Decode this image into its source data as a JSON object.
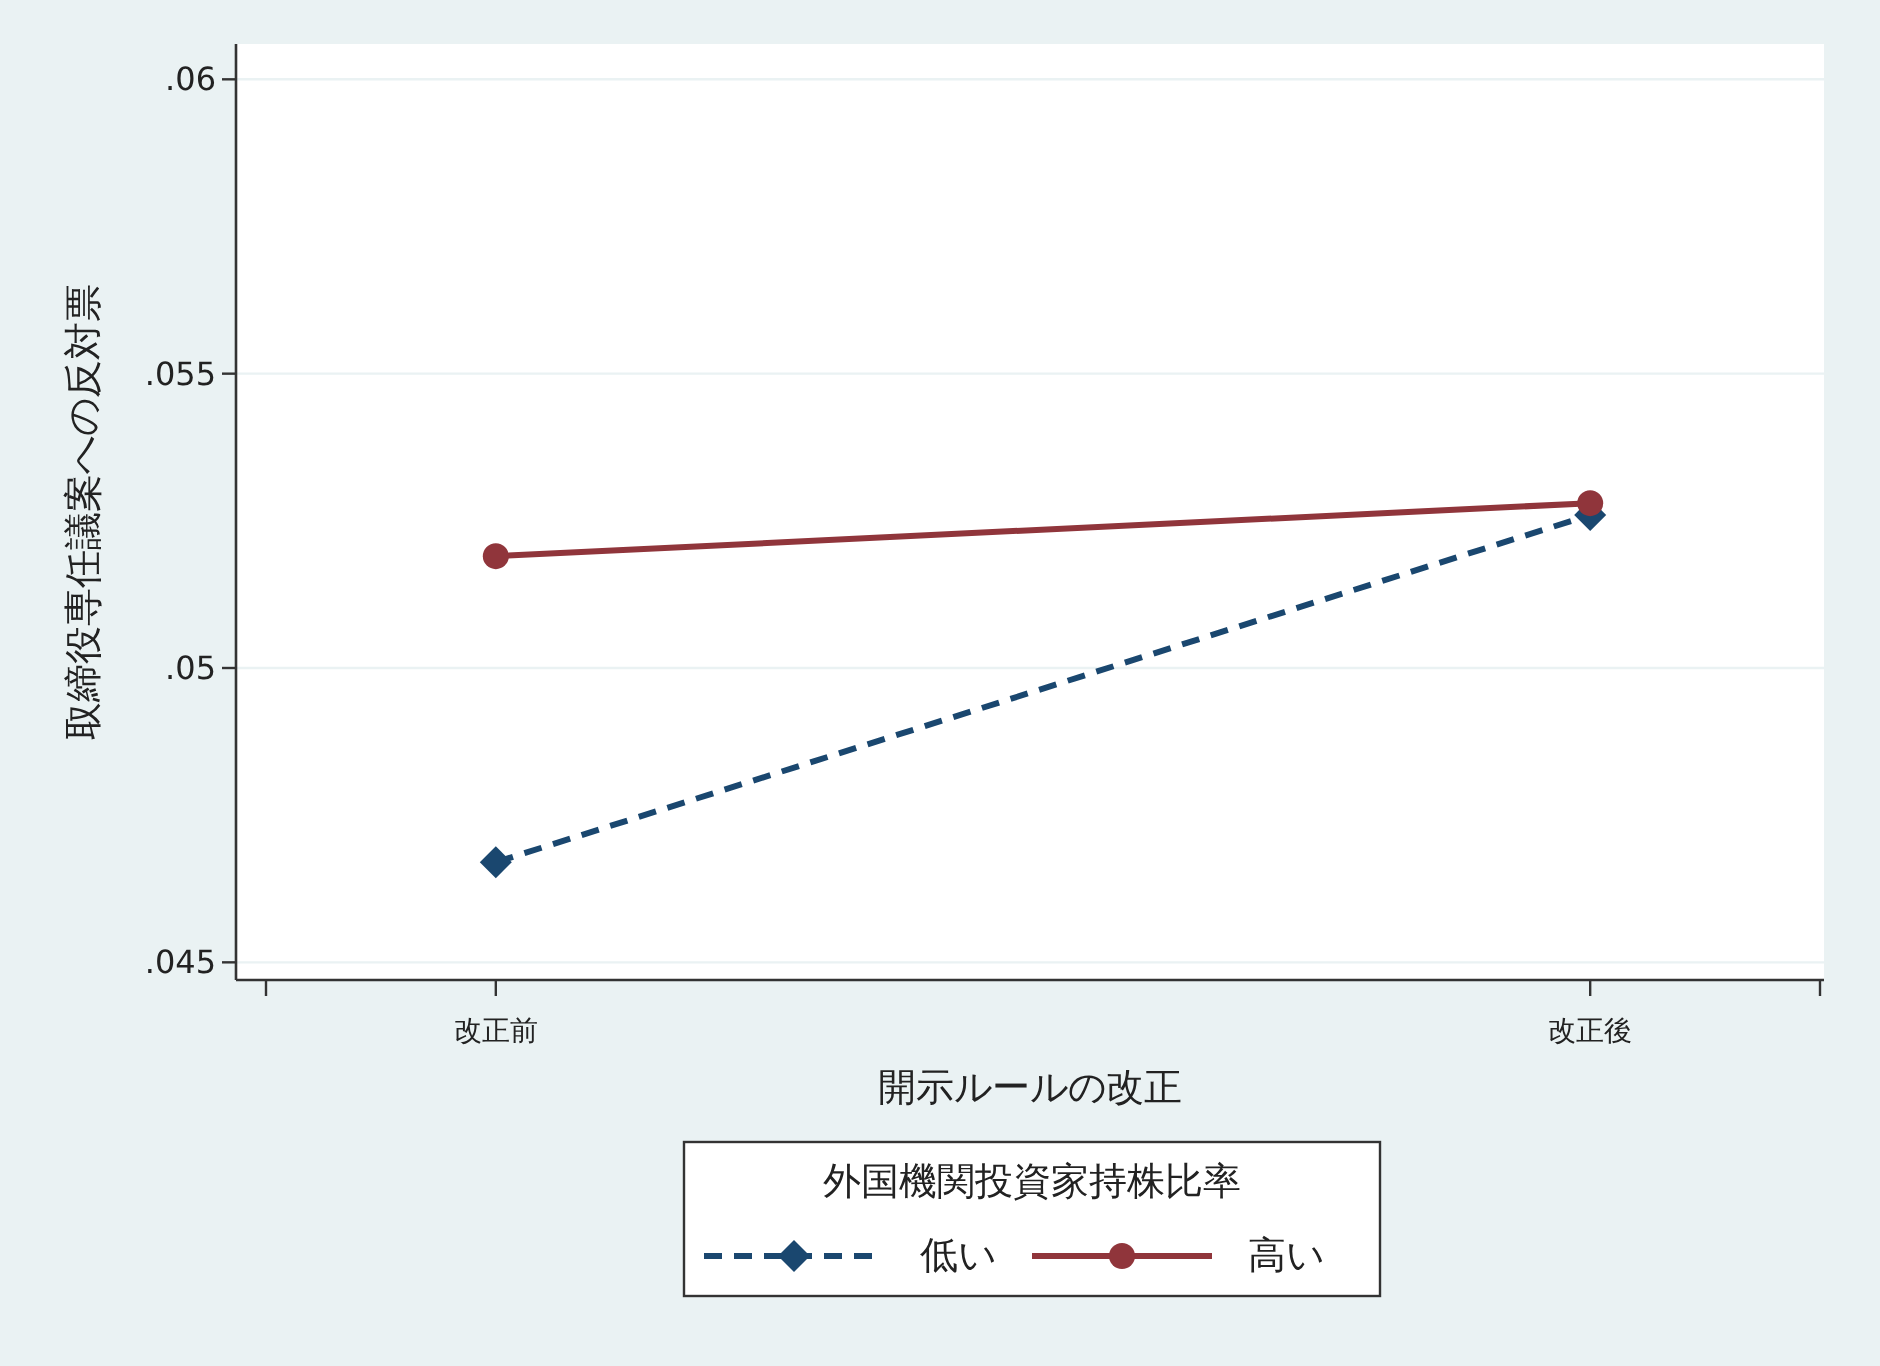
{
  "chart_data": {
    "type": "line",
    "xlabel": "開示ルールの改正",
    "ylabel": "取締役専任議案への反対票",
    "legend_title": "外国機関投資家持株比率",
    "categories": [
      "改正前",
      "改正後"
    ],
    "series": [
      {
        "name": "低い",
        "color": "#1a476f",
        "values": [
          0.0467,
          0.0526
        ],
        "marker": "diamond",
        "line_style": "dashed"
      },
      {
        "name": "高い",
        "color": "#90353b",
        "values": [
          0.0519,
          0.0528
        ],
        "marker": "circle",
        "line_style": "solid"
      }
    ],
    "ylim": [
      0.0447,
      0.0606
    ],
    "yticks": [
      {
        "value": 0.045,
        "label": ".045"
      },
      {
        "value": 0.05,
        "label": ".05"
      },
      {
        "value": 0.055,
        "label": ".055"
      },
      {
        "value": 0.06,
        "label": ".06"
      }
    ],
    "grid": "y",
    "legend": "bottom"
  }
}
